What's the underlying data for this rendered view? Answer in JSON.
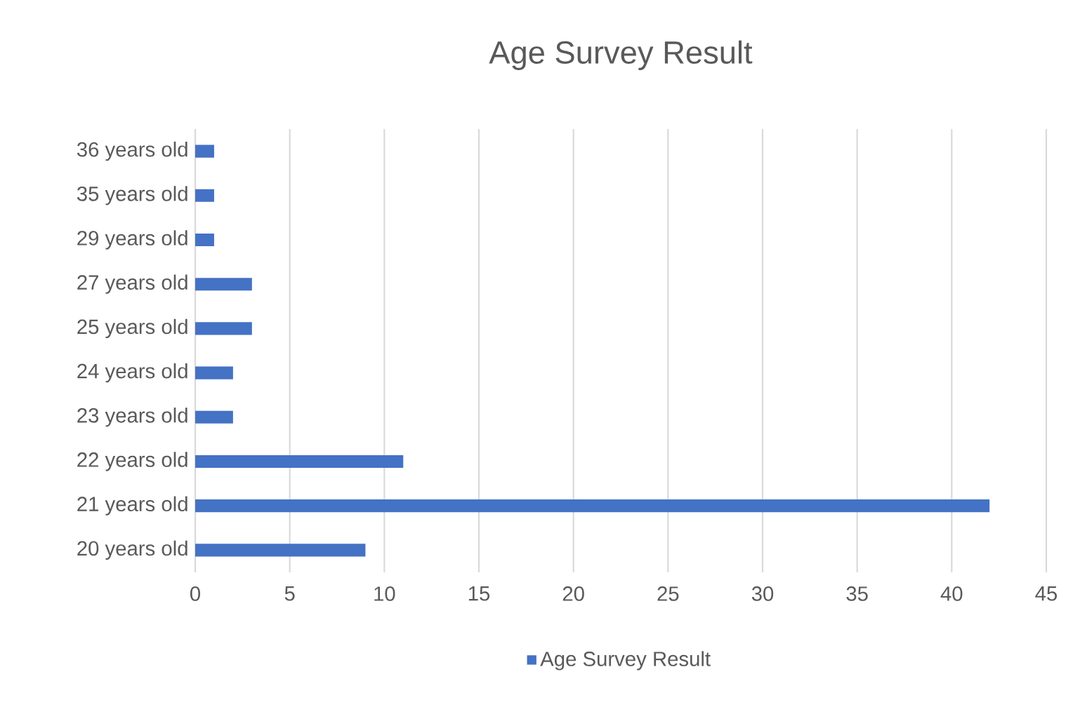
{
  "chart_data": {
    "type": "bar",
    "orientation": "horizontal",
    "title": "Age Survey Result",
    "categories": [
      "36 years old",
      "35 years old",
      "29 years old",
      "27 years old",
      "25 years old",
      "24 years old",
      "23 years old",
      "22 years old",
      "21 years old",
      "20 years old"
    ],
    "series": [
      {
        "name": "Age Survey Result",
        "color": "#4472c4",
        "values": [
          1,
          1,
          1,
          3,
          3,
          2,
          2,
          11,
          42,
          9
        ]
      }
    ],
    "xlim": [
      0,
      45
    ],
    "xticks": [
      0,
      5,
      10,
      15,
      20,
      25,
      30,
      35,
      40,
      45
    ],
    "grid": "x",
    "legend": "bottom"
  }
}
